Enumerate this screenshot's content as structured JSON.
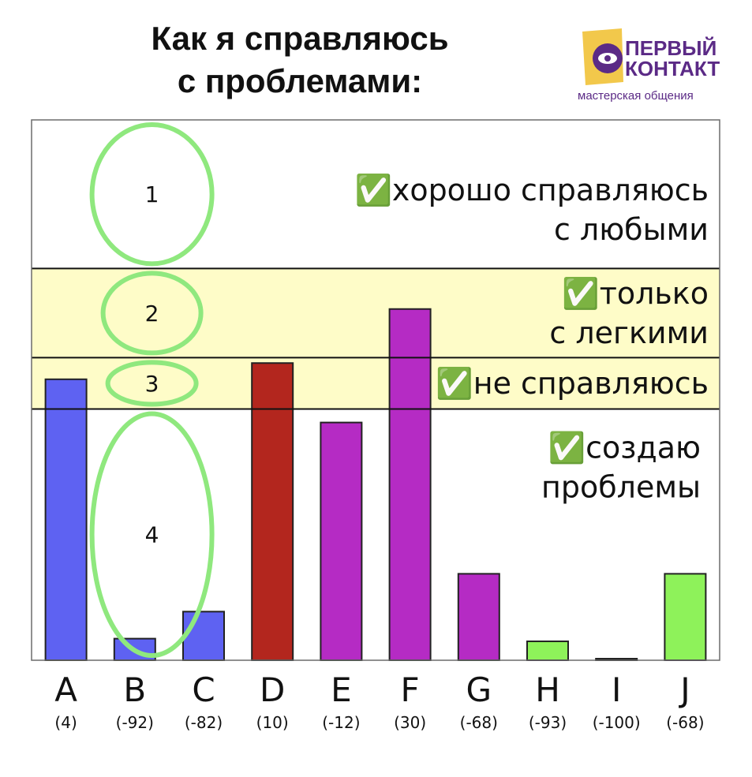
{
  "title_line1": "Как я справляюсь",
  "title_line2": "с проблемами:",
  "logo": {
    "line1": "ПЕРВЫЙ",
    "line2": "КОНТАКТ",
    "tagline": "мастерская общения",
    "accent_color": "#f2c84b",
    "brand_color": "#5b2a86"
  },
  "zones": [
    {
      "number": "1",
      "check": "✅",
      "lines": [
        "хорошо справляюсь",
        "с любыми"
      ],
      "from": 45,
      "to": 100
    },
    {
      "number": "2",
      "check": "✅",
      "lines": [
        "только",
        "с легкими"
      ],
      "from": 12,
      "to": 45
    },
    {
      "number": "3",
      "check": "✅",
      "lines": [
        "не справляюсь"
      ],
      "from": -7,
      "to": 12
    },
    {
      "number": "4",
      "check": "✅",
      "lines": [
        "создаю",
        "проблемы"
      ],
      "from": -100,
      "to": -7
    }
  ],
  "colors": {
    "band": "#fefcc8",
    "ellipse": "#8fe87e",
    "blue": "#5e62f2",
    "red": "#b3261e",
    "purple": "#b52bc4",
    "green": "#8ef25a"
  },
  "chart_data": {
    "type": "bar",
    "categories": [
      "A",
      "B",
      "C",
      "D",
      "E",
      "F",
      "G",
      "H",
      "I",
      "J"
    ],
    "labels": [
      "(4)",
      "(-92)",
      "(-82)",
      "(10)",
      "(-12)",
      "(30)",
      "(-68)",
      "(-93)",
      "(-100)",
      "(-68)"
    ],
    "values": [
      4,
      -92,
      -82,
      10,
      -12,
      30,
      -68,
      -93,
      -100,
      -68
    ],
    "bar_colors": [
      "blue",
      "blue",
      "blue",
      "red",
      "purple",
      "purple",
      "purple",
      "green",
      "green",
      "green"
    ],
    "ylim": [
      -100,
      100
    ],
    "grid": false,
    "title": "Как я справляюсь с проблемами:",
    "xlabel": "",
    "ylabel": ""
  }
}
